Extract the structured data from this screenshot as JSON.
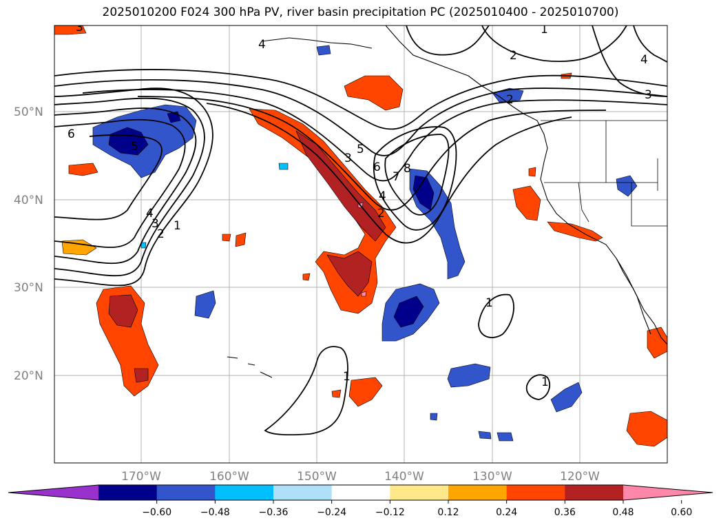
{
  "title": "2025010200 F024 300 hPa PV, river basin precipitation PC (2025010400 - 2025010700)",
  "map": {
    "lat_labels": [
      "50°N",
      "40°N",
      "30°N",
      "20°N"
    ],
    "lon_labels": [
      "170°W",
      "160°W",
      "150°W",
      "140°W",
      "130°W",
      "120°W"
    ],
    "pv_contour_labels": [
      "1",
      "2",
      "3",
      "4",
      "6",
      "5",
      "7",
      "8",
      "1",
      "1",
      "1",
      "2",
      "3",
      "4",
      "5",
      "2",
      "3",
      "4",
      "6",
      "1",
      "2",
      "3",
      "4"
    ],
    "shading_colors": {
      "strong_negative": "#00008b",
      "negative": "#3355cc",
      "weak_negative": "#00bfff",
      "light_negative": "#aee0f8",
      "weak_positive": "#ffe88a",
      "light_positive": "#ffa500",
      "positive": "#ff4500",
      "strong_positive": "#b22222",
      "max_positive": "#ff88aa"
    }
  },
  "colorbar": {
    "ticks": [
      "−0.60",
      "−0.48",
      "−0.36",
      "−0.24",
      "−0.12",
      "0.12",
      "0.24",
      "0.36",
      "0.48",
      "0.60"
    ],
    "colors": [
      "#9932cc",
      "#00008b",
      "#3355cc",
      "#00bfff",
      "#aee0f8",
      "#ffffff",
      "#ffe88a",
      "#ffa500",
      "#ff4500",
      "#b22222",
      "#ff88aa"
    ]
  }
}
